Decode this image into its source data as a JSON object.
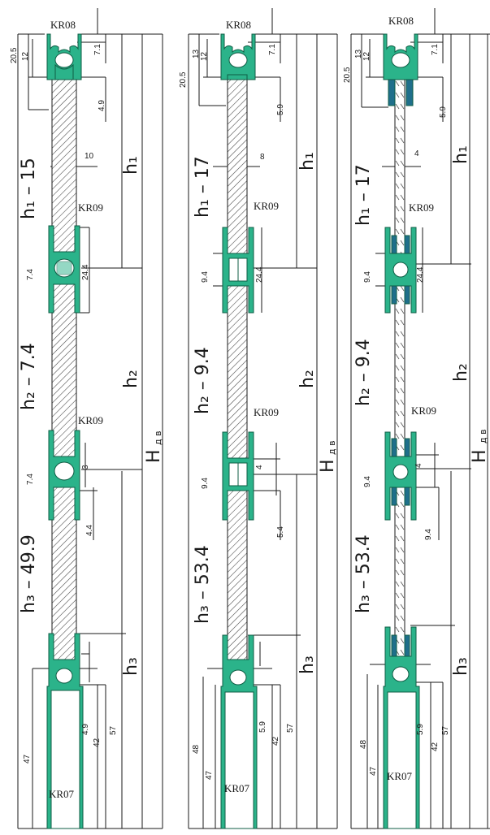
{
  "colors": {
    "profile_green": "#2bb38a",
    "profile_dark": "#0f5c44",
    "profile_blue": "#1f6f8b",
    "line": "#1a1a1a",
    "hatch": "#555555"
  },
  "columns": [
    {
      "profiles": {
        "top": "KR08",
        "mid1": "KR09",
        "mid2": "KR09",
        "bottom": "KR07"
      },
      "formulas": {
        "f1": "h₁ – 15",
        "f2": "h₂ – 7.4",
        "f3": "h₃ – 49.9"
      },
      "heights": {
        "h1": "h₁",
        "h2": "h₂",
        "h3": "h₃",
        "H": "H",
        "H_sub": "д в"
      },
      "dims": {
        "top_outer": "20.5",
        "top_inner": "12",
        "top_right": "7.1",
        "top_lower": "4.9",
        "infill": "10",
        "mid1_left": "7.4",
        "mid1_right": "24.4",
        "mid2_left": "7.4",
        "mid2_right_a": "3",
        "mid2_right_b": "4.4",
        "bot_a": "4.9",
        "bot_b": "42",
        "bot_c": "57",
        "bot_left": "47"
      }
    },
    {
      "profiles": {
        "top": "KR08",
        "mid1": "KR09",
        "mid2": "KR09",
        "bottom": "KR07"
      },
      "formulas": {
        "f1": "h₁ – 17",
        "f2": "h₂ – 9.4",
        "f3": "h₃ – 53.4"
      },
      "heights": {
        "h1": "h₁",
        "h2": "h₂",
        "h3": "h₃",
        "H": "H",
        "H_sub": "д в"
      },
      "dims": {
        "top_outer": "20.5",
        "top_a": "13",
        "top_inner": "12",
        "top_right": "7.1",
        "top_lower": "5.9",
        "infill": "8",
        "mid1_left": "9.4",
        "mid1_right": "24.4",
        "mid2_left": "9.4",
        "mid2_right_a": "4",
        "mid2_right_b": "5.4",
        "bot_a": "5.9",
        "bot_b": "42",
        "bot_c": "57",
        "bot_left_a": "48",
        "bot_left_b": "47"
      }
    },
    {
      "profiles": {
        "top": "KR08",
        "mid1": "KR09",
        "mid2": "KR09",
        "bottom": "KR07"
      },
      "formulas": {
        "f1": "h₁ – 17",
        "f2": "h₂ – 9.4",
        "f3": "h₃ – 53.4"
      },
      "heights": {
        "h1": "h₁",
        "h2": "h₂",
        "h3": "h₃",
        "H": "H",
        "H_sub": "д в"
      },
      "dims": {
        "top_outer": "20.5",
        "top_a": "13",
        "top_inner": "12",
        "top_right": "7.1",
        "top_lower": "5.9",
        "infill": "4",
        "mid1_left": "9.4",
        "mid1_right": "24.4",
        "mid2_left": "9.4",
        "mid2_right_a": "4",
        "mid2_right_b": "9.4",
        "bot_a": "5.9",
        "bot_b": "42",
        "bot_c": "57",
        "bot_left_a": "48",
        "bot_left_b": "47"
      }
    }
  ]
}
